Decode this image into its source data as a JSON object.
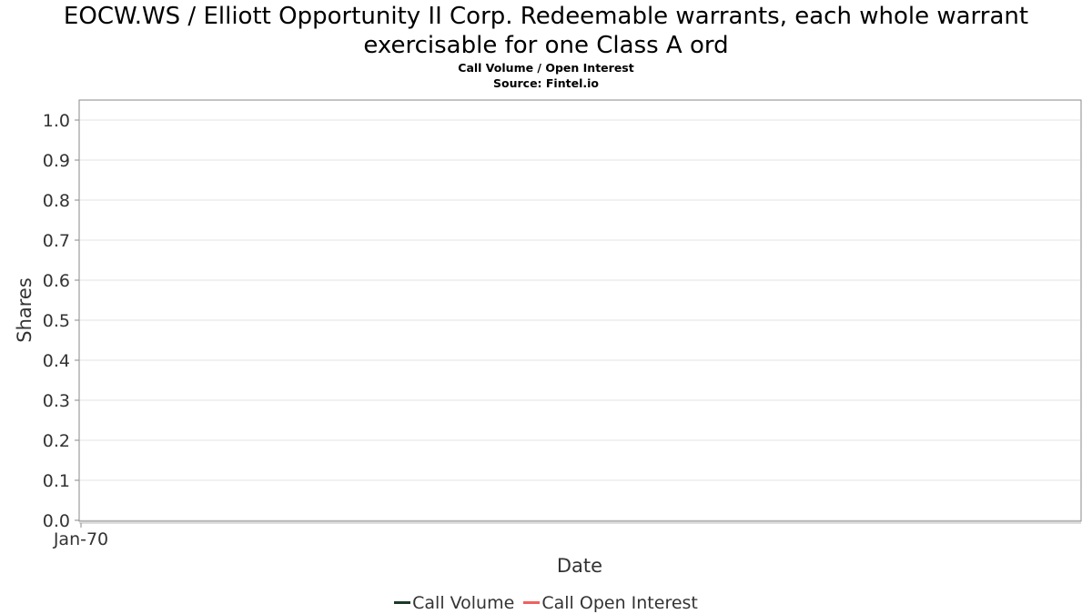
{
  "chart_data": {
    "type": "line",
    "title_line1": "EOCW.WS / Elliott Opportunity II Corp. Redeemable warrants, each whole warrant",
    "title_line2": "exercisable for one Class A ord",
    "subtitle": "Call Volume / Open Interest",
    "source": "Source: Fintel.io",
    "xlabel": "Date",
    "ylabel": "Shares",
    "ylim": [
      0.0,
      1.0
    ],
    "y_ticks": [
      "0.0",
      "0.1",
      "0.2",
      "0.3",
      "0.4",
      "0.5",
      "0.6",
      "0.7",
      "0.8",
      "0.9",
      "1.0"
    ],
    "x_ticks": [
      "Jan-70"
    ],
    "grid": true,
    "legend_position": "bottom",
    "series": [
      {
        "name": "Call Volume",
        "color": "#1a3a2a",
        "x": [],
        "y": []
      },
      {
        "name": "Call Open Interest",
        "color": "#f06060",
        "x": [],
        "y": []
      }
    ]
  }
}
